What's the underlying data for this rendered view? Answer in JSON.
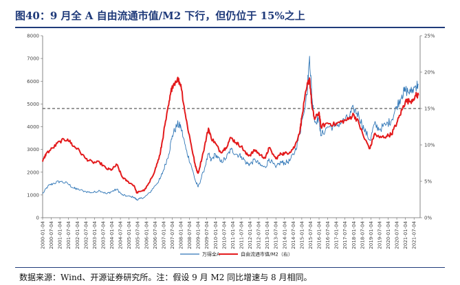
{
  "header": {
    "title": "图40：9 月全 A 自由流通市值/M2 下行，但仍位于 15%之上"
  },
  "footer": {
    "source": "数据来源：Wind、开源证券研究所。注：假设 9 月 M2 同比增速与 8 月相同。"
  },
  "colors": {
    "title": "#1f3a7a",
    "series_a": "#2e75b6",
    "series_b": "#e31a1c",
    "reference_line": "#333333"
  },
  "chart_data": {
    "type": "line",
    "x_tick_labels": [
      "2000-01-04",
      "2000-07-04",
      "2001-01-04",
      "2001-07-04",
      "2002-01-04",
      "2002-07-04",
      "2003-01-04",
      "2003-07-04",
      "2004-01-04",
      "2004-07-04",
      "2005-01-04",
      "2005-07-04",
      "2006-01-04",
      "2006-07-04",
      "2007-01-04",
      "2007-07-04",
      "2008-01-04",
      "2008-07-04",
      "2009-01-04",
      "2009-07-04",
      "2010-01-04",
      "2010-07-04",
      "2011-01-04",
      "2011-07-04",
      "2012-01-04",
      "2012-07-04",
      "2013-01-04",
      "2013-07-04",
      "2014-01-04",
      "2014-07-04",
      "2015-01-04",
      "2015-07-04",
      "2016-01-04",
      "2016-07-04",
      "2017-01-04",
      "2017-07-04",
      "2018-01-04",
      "2018-07-04",
      "2019-01-04",
      "2019-07-04",
      "2020-01-04",
      "2020-07-04",
      "2021-01-04",
      "2021-07-04"
    ],
    "y_left": {
      "lim": [
        0,
        8000
      ],
      "ticks": [
        "0",
        "1000",
        "2000",
        "3000",
        "4000",
        "5000",
        "6000",
        "7000",
        "8000"
      ]
    },
    "y_right": {
      "lim": [
        0,
        25
      ],
      "ticks": [
        "0%",
        "5%",
        "10%",
        "15%",
        "20%",
        "25%"
      ]
    },
    "reference_line": {
      "axis": "right",
      "value": 15
    },
    "grid": false,
    "legend_position": "bottom-center",
    "series": [
      {
        "name": "万得全A",
        "axis": "left",
        "x": [
          2000.0,
          2000.3,
          2000.6,
          2001.0,
          2001.45,
          2001.8,
          2002.0,
          2002.5,
          2002.9,
          2003.3,
          2003.7,
          2004.0,
          2004.3,
          2004.6,
          2004.9,
          2005.3,
          2005.45,
          2005.6,
          2005.9,
          2006.2,
          2006.5,
          2006.8,
          2007.0,
          2007.3,
          2007.5,
          2007.8,
          2008.0,
          2008.3,
          2008.6,
          2008.85,
          2009.0,
          2009.3,
          2009.6,
          2009.75,
          2010.0,
          2010.3,
          2010.6,
          2010.9,
          2011.2,
          2011.5,
          2011.8,
          2012.0,
          2012.3,
          2012.6,
          2012.9,
          2013.1,
          2013.5,
          2013.8,
          2014.0,
          2014.3,
          2014.6,
          2014.9,
          2015.0,
          2015.3,
          2015.45,
          2015.6,
          2015.75,
          2016.0,
          2016.1,
          2016.5,
          2016.9,
          2017.3,
          2017.7,
          2018.0,
          2018.3,
          2018.6,
          2018.95,
          2019.2,
          2019.5,
          2019.9,
          2020.2,
          2020.5,
          2020.8,
          2021.0,
          2021.3,
          2021.6,
          2021.75
        ],
        "y": [
          1050,
          1380,
          1500,
          1600,
          1500,
          1300,
          1250,
          1150,
          1100,
          1200,
          1050,
          1150,
          1250,
          1000,
          950,
          900,
          780,
          830,
          900,
          1100,
          1400,
          1700,
          2100,
          2800,
          3600,
          4100,
          4000,
          3000,
          2300,
          1600,
          1350,
          2000,
          2800,
          2500,
          2800,
          2450,
          2600,
          3000,
          2800,
          2700,
          2400,
          2350,
          2550,
          2300,
          2200,
          2600,
          2200,
          2450,
          2400,
          2500,
          2900,
          3700,
          4300,
          5400,
          7100,
          5200,
          4200,
          4400,
          3600,
          4000,
          4000,
          4200,
          4400,
          4800,
          4500,
          3900,
          3400,
          4100,
          3900,
          4100,
          4300,
          4900,
          5400,
          5600,
          5500,
          5800,
          5850
        ]
      },
      {
        "name": "自由流通市值/M2（右）",
        "axis": "right",
        "x": [
          2000.0,
          2000.2,
          2000.6,
          2001.0,
          2001.45,
          2001.8,
          2002.0,
          2002.5,
          2002.9,
          2003.3,
          2003.7,
          2004.0,
          2004.3,
          2004.6,
          2004.9,
          2005.3,
          2005.45,
          2005.6,
          2005.9,
          2006.2,
          2006.5,
          2006.8,
          2007.0,
          2007.3,
          2007.5,
          2007.8,
          2008.0,
          2008.3,
          2008.6,
          2008.85,
          2009.0,
          2009.3,
          2009.6,
          2009.75,
          2010.0,
          2010.3,
          2010.6,
          2010.9,
          2011.2,
          2011.5,
          2011.8,
          2012.0,
          2012.3,
          2012.6,
          2012.9,
          2013.1,
          2013.5,
          2013.8,
          2014.0,
          2014.3,
          2014.6,
          2014.9,
          2015.0,
          2015.3,
          2015.45,
          2015.6,
          2015.75,
          2016.0,
          2016.1,
          2016.5,
          2016.9,
          2017.3,
          2017.7,
          2018.0,
          2018.3,
          2018.6,
          2018.95,
          2019.2,
          2019.5,
          2019.9,
          2020.2,
          2020.5,
          2020.8,
          2021.0,
          2021.3,
          2021.6,
          2021.75
        ],
        "y": [
          7.7,
          8.8,
          9.6,
          10.5,
          10.8,
          9.8,
          9.5,
          8.1,
          7.6,
          7.6,
          6.7,
          6.6,
          7.3,
          5.6,
          5.0,
          4.4,
          3.4,
          3.6,
          3.8,
          4.9,
          6.5,
          8.7,
          11.6,
          15.5,
          18.1,
          19.1,
          18.3,
          13.6,
          10.0,
          7.0,
          6.1,
          9.0,
          12.3,
          11.0,
          10.2,
          9.0,
          9.6,
          11.0,
          10.3,
          9.8,
          8.7,
          8.6,
          9.3,
          8.6,
          8.2,
          9.6,
          8.1,
          8.8,
          8.8,
          9.0,
          9.8,
          12.0,
          13.8,
          18.0,
          19.2,
          15.0,
          13.5,
          14.5,
          12.5,
          13.0,
          12.8,
          13.2,
          13.5,
          14.2,
          13.0,
          11.0,
          9.5,
          11.5,
          11.0,
          11.2,
          11.5,
          13.0,
          14.8,
          16.0,
          16.0,
          16.8,
          16.8
        ]
      }
    ]
  }
}
